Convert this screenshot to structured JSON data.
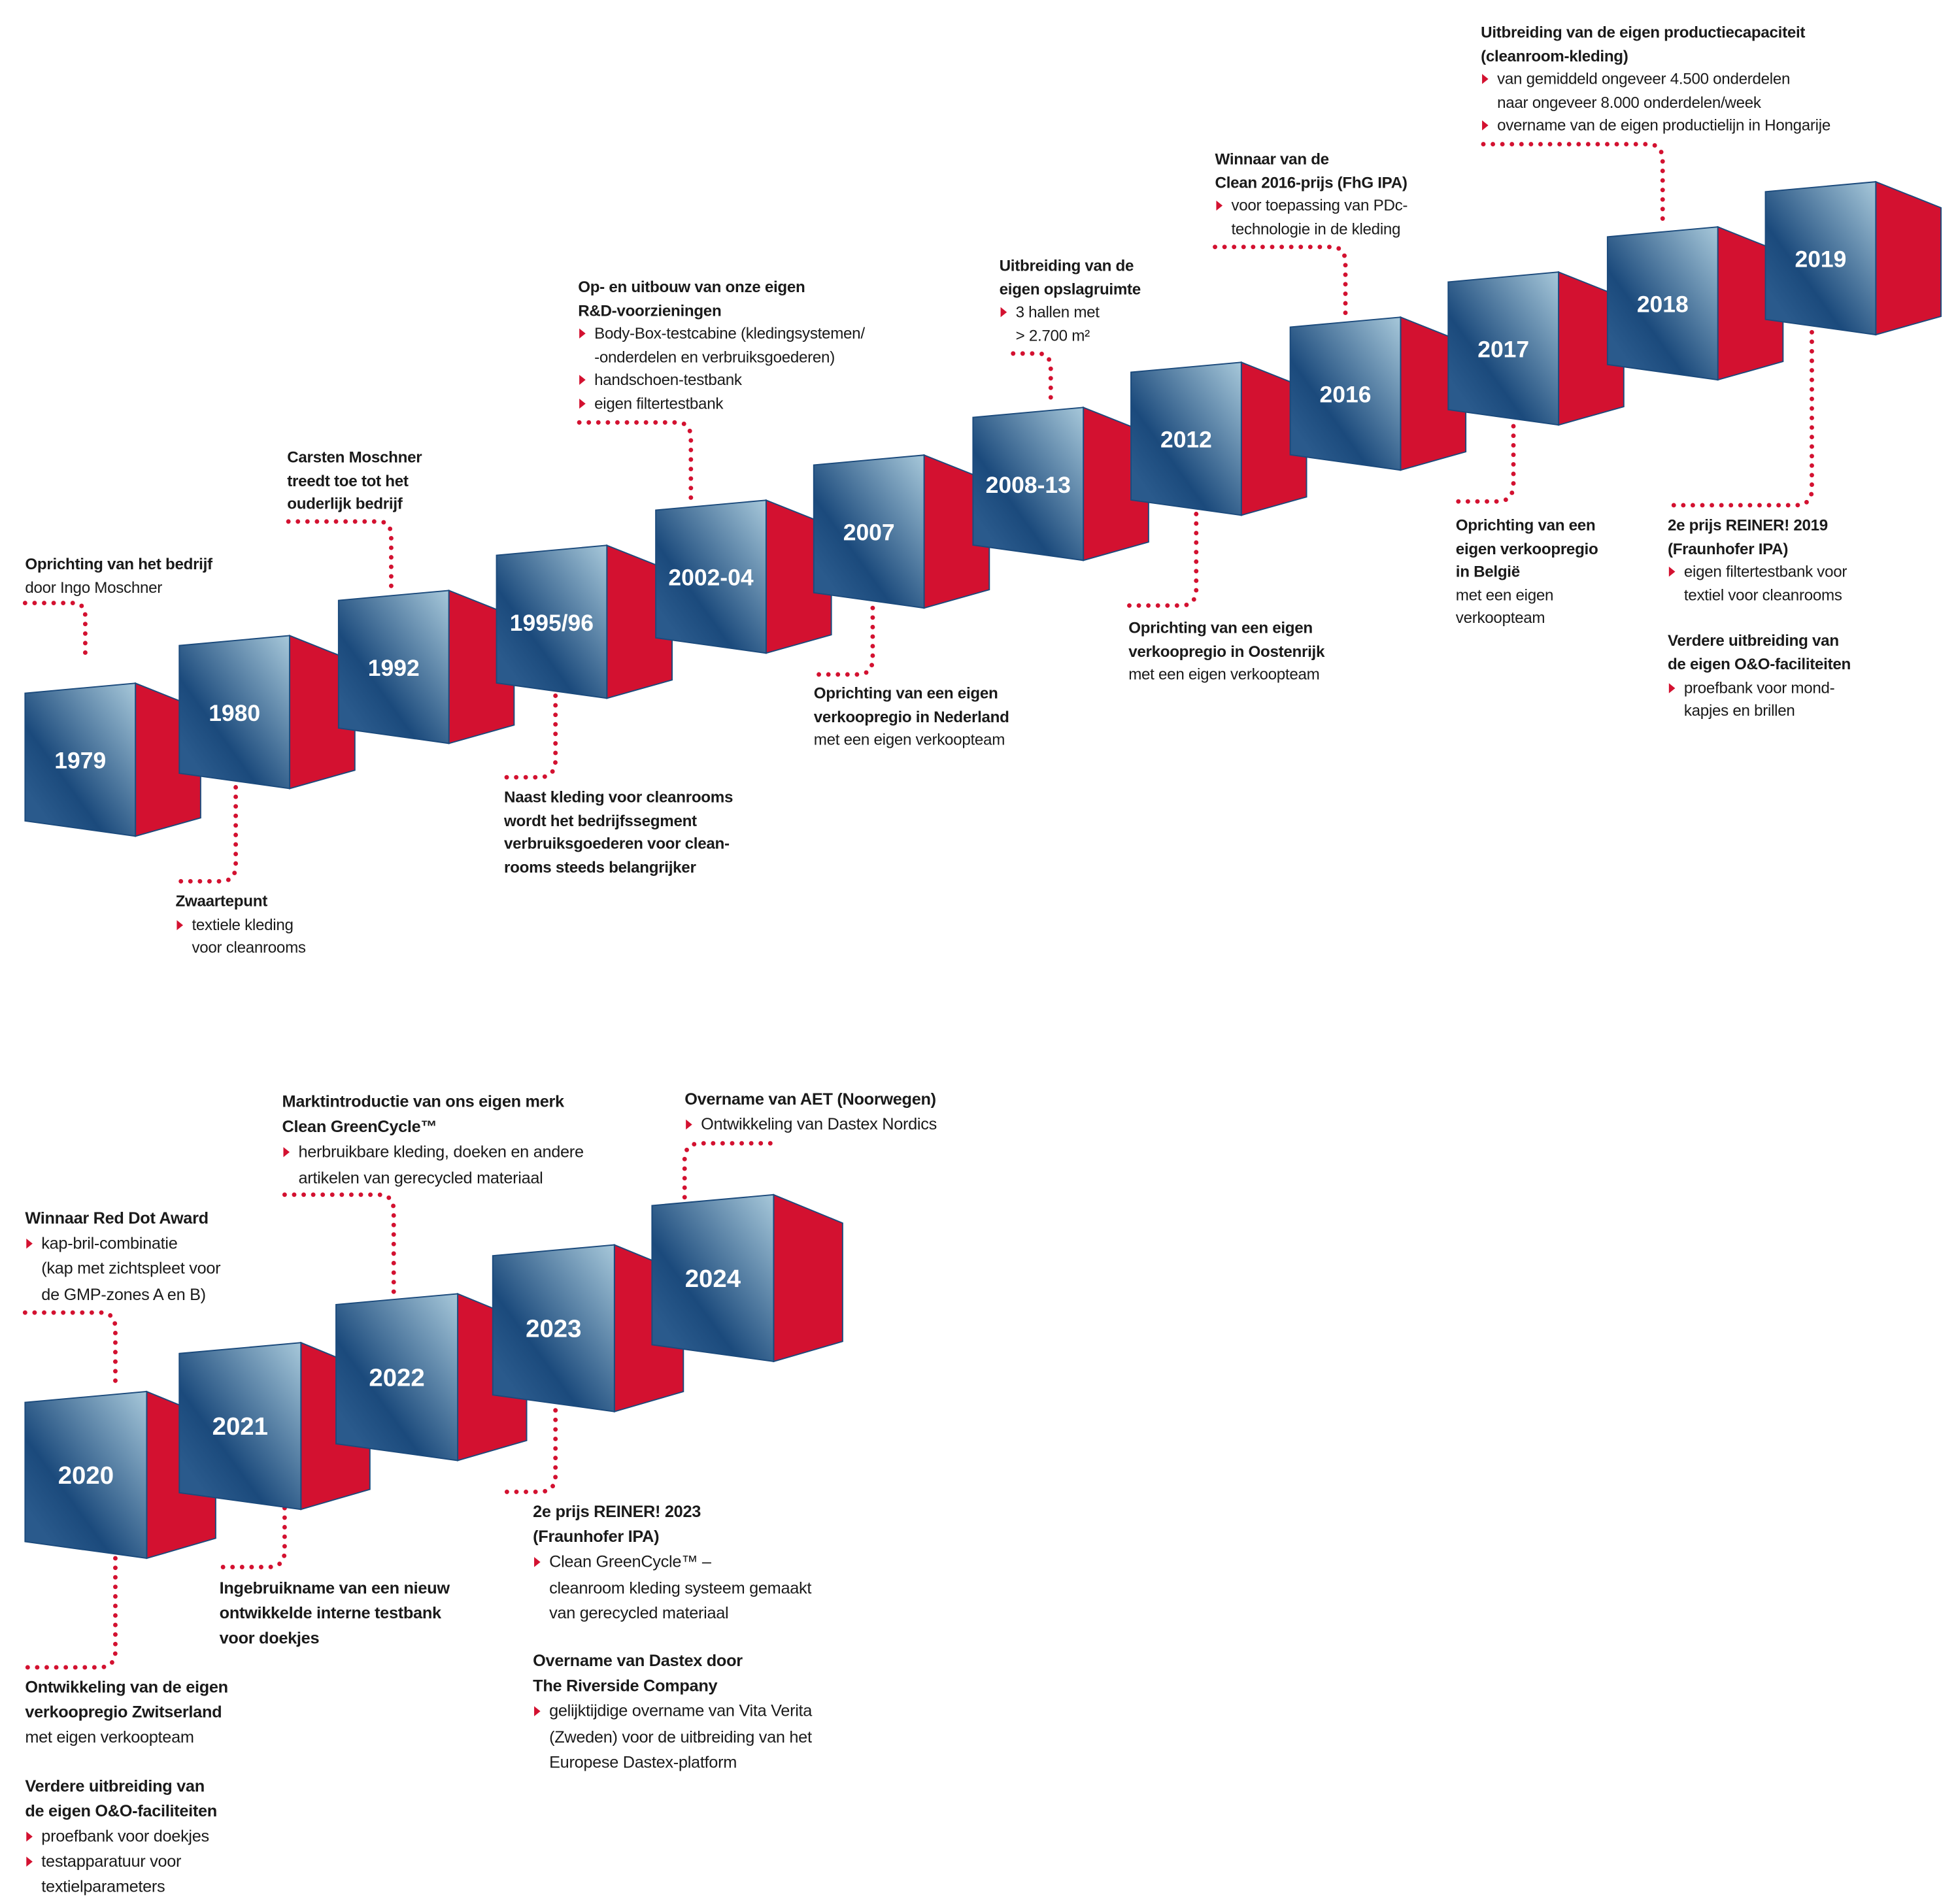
{
  "colors": {
    "accent_red": "#d31130",
    "cube_dark": "#1b4a7c",
    "cube_light": "#a7c8da"
  },
  "years": [
    "1979",
    "1980",
    "1992",
    "1995/96",
    "2002-04",
    "2007",
    "2008-13",
    "2012",
    "2016",
    "2017",
    "2018",
    "2019",
    "2020",
    "2021",
    "2022",
    "2023",
    "2024"
  ],
  "blocks": [
    {
      "sections": [
        {
          "heading": [
            "Oprichting van het bedrijf"
          ],
          "text": [
            "door Ingo Moschner"
          ]
        }
      ]
    },
    {
      "sections": [
        {
          "heading": [
            "Zwaartepunt"
          ],
          "bullets": [
            [
              "textiele kleding",
              "voor cleanrooms"
            ]
          ]
        }
      ]
    },
    {
      "sections": [
        {
          "heading": [
            "Carsten Moschner",
            "treedt toe tot het",
            "ouderlijk bedrijf"
          ]
        }
      ]
    },
    {
      "sections": [
        {
          "heading": [
            "Naast kleding voor cleanrooms",
            "wordt het bedrijfssegment",
            "verbruiksgoederen voor clean-",
            "rooms steeds belangrijker"
          ]
        }
      ]
    },
    {
      "sections": [
        {
          "heading": [
            "Op- en uitbouw van onze eigen",
            "R&D-voorzieningen"
          ],
          "bullets": [
            [
              "Body-Box-testcabine (kledingsystemen/",
              "-onderdelen en verbruiksgoederen)"
            ],
            [
              "handschoen-testbank"
            ],
            [
              "eigen filtertestbank"
            ]
          ]
        }
      ]
    },
    {
      "sections": [
        {
          "heading": [
            "Oprichting van een eigen",
            "verkoopregio in Nederland"
          ],
          "text": [
            "met een eigen verkoopteam"
          ]
        }
      ]
    },
    {
      "sections": [
        {
          "heading": [
            "Uitbreiding van de",
            "eigen opslagruimte"
          ],
          "bullets": [
            [
              "3 hallen met",
              "> 2.700 m²"
            ]
          ]
        }
      ]
    },
    {
      "sections": [
        {
          "heading": [
            "Oprichting van een eigen",
            "verkoopregio in Oostenrijk"
          ],
          "text": [
            "met een eigen verkoopteam"
          ]
        }
      ]
    },
    {
      "sections": [
        {
          "heading": [
            "Winnaar van de",
            "Clean 2016-prijs (FhG IPA)"
          ],
          "bullets": [
            [
              "voor toepassing van PDc-",
              "technologie in de kleding"
            ]
          ]
        }
      ]
    },
    {
      "sections": [
        {
          "heading": [
            "Oprichting van een",
            "eigen verkoopregio",
            "in België"
          ],
          "text": [
            "met een eigen",
            "verkoopteam"
          ]
        }
      ]
    },
    {
      "sections": [
        {
          "heading": [
            "Uitbreiding van de eigen productiecapaciteit",
            "(cleanroom-kleding)"
          ],
          "bullets": [
            [
              "van gemiddeld ongeveer 4.500 onderdelen",
              "naar ongeveer 8.000 onderdelen/week"
            ],
            [
              "overname van de eigen productielijn in Hongarije"
            ]
          ]
        }
      ]
    },
    {
      "sections": [
        {
          "heading": [
            "2e prijs REINER! 2019",
            "(Fraunhofer IPA)"
          ],
          "bullets": [
            [
              "eigen filtertestbank voor",
              "textiel voor cleanrooms"
            ]
          ]
        },
        {
          "heading": [
            "Verdere uitbreiding van",
            "de eigen O&O-faciliteiten"
          ],
          "bullets": [
            [
              "proefbank voor mond-",
              "kapjes en brillen"
            ]
          ]
        }
      ]
    },
    {
      "sections": [
        {
          "heading": [
            "Winnaar Red Dot Award"
          ],
          "bullets": [
            [
              "kap-bril-combinatie",
              "(kap met zichtspleet voor",
              "de GMP-zones A en B)"
            ]
          ]
        }
      ]
    },
    {
      "sections": [
        {
          "heading": [
            "Marktintroductie van ons eigen merk",
            "Clean GreenCycle™"
          ],
          "bullets": [
            [
              "herbruikbare kleding, doeken en andere",
              "artikelen van gerecycled materiaal"
            ]
          ]
        }
      ]
    },
    {
      "sections": [
        {
          "heading": [
            "Overname van AET (Noorwegen)"
          ],
          "bullets": [
            [
              "Ontwikkeling van Dastex Nordics"
            ]
          ]
        }
      ]
    },
    {
      "sections": [
        {
          "heading": [
            "Ingebruikname van een nieuw",
            "ontwikkelde interne testbank",
            "voor doekjes"
          ]
        }
      ]
    },
    {
      "sections": [
        {
          "heading": [
            "Ontwikkeling van de eigen",
            "verkoopregio Zwitserland"
          ],
          "text": [
            "met eigen verkoopteam"
          ]
        },
        {
          "heading": [
            "Verdere uitbreiding van",
            "de eigen O&O-faciliteiten"
          ],
          "bullets": [
            [
              "proefbank voor doekjes"
            ],
            [
              "testapparatuur voor",
              "textielparameters"
            ]
          ]
        }
      ]
    },
    {
      "sections": [
        {
          "heading": [
            "2e prijs REINER! 2023",
            "(Fraunhofer IPA)"
          ],
          "bullets": [
            [
              "Clean GreenCycle™ –",
              "cleanroom kleding systeem gemaakt",
              "van gerecycled materiaal"
            ]
          ]
        },
        {
          "heading": [
            "Overname van Dastex door",
            "The Riverside Company"
          ],
          "bullets": [
            [
              "gelijktijdige overname van Vita Verita",
              "(Zweden) voor de uitbreiding van het",
              "Europese Dastex-platform"
            ]
          ]
        }
      ]
    }
  ]
}
